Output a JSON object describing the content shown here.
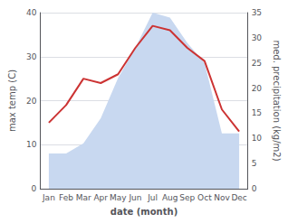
{
  "chart_data": {
    "type": "line",
    "xlabel": "date (month)",
    "ylabel": "max temp (C)",
    "y2label": "med. precipitation (kg/m2)",
    "categories": [
      "Jan",
      "Feb",
      "Mar",
      "Apr",
      "May",
      "Jun",
      "Jul",
      "Aug",
      "Sep",
      "Oct",
      "Nov",
      "Dec"
    ],
    "series": [
      {
        "type": "area",
        "axis": "y2",
        "color": "#c8d8f0",
        "values": [
          7,
          7,
          9,
          14,
          22,
          28,
          35,
          34,
          29,
          25,
          11,
          11
        ]
      },
      {
        "type": "line",
        "axis": "y",
        "color": "#cc3333",
        "values": [
          15,
          19,
          25,
          24,
          26,
          32,
          37,
          36,
          32,
          29,
          18,
          13
        ]
      }
    ],
    "ylim": [
      0,
      40
    ],
    "yticks": [
      0,
      10,
      20,
      30,
      40
    ],
    "y2lim": [
      0,
      35
    ],
    "y2ticks": [
      0,
      5,
      10,
      15,
      20,
      25,
      30,
      35
    ],
    "grid": true
  }
}
